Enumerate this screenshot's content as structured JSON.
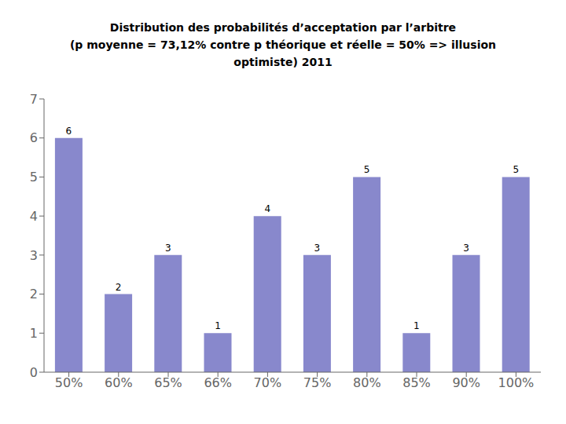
{
  "chart_data": {
    "type": "bar",
    "title": "Distribution des probabilités d’acceptation par l’arbitre\n(p moyenne = 73,12% contre p théorique et réelle = 50% => illusion\noptimiste) 2011",
    "categories": [
      "50%",
      "60%",
      "65%",
      "66%",
      "70%",
      "75%",
      "80%",
      "85%",
      "90%",
      "100%"
    ],
    "values": [
      6,
      2,
      3,
      1,
      4,
      3,
      5,
      1,
      3,
      5
    ],
    "color": "#8888cc",
    "ylim": [
      0,
      7
    ],
    "yticks": [
      0,
      1,
      2,
      3,
      4,
      5,
      6,
      7
    ],
    "grid": false,
    "data_labels": true
  }
}
